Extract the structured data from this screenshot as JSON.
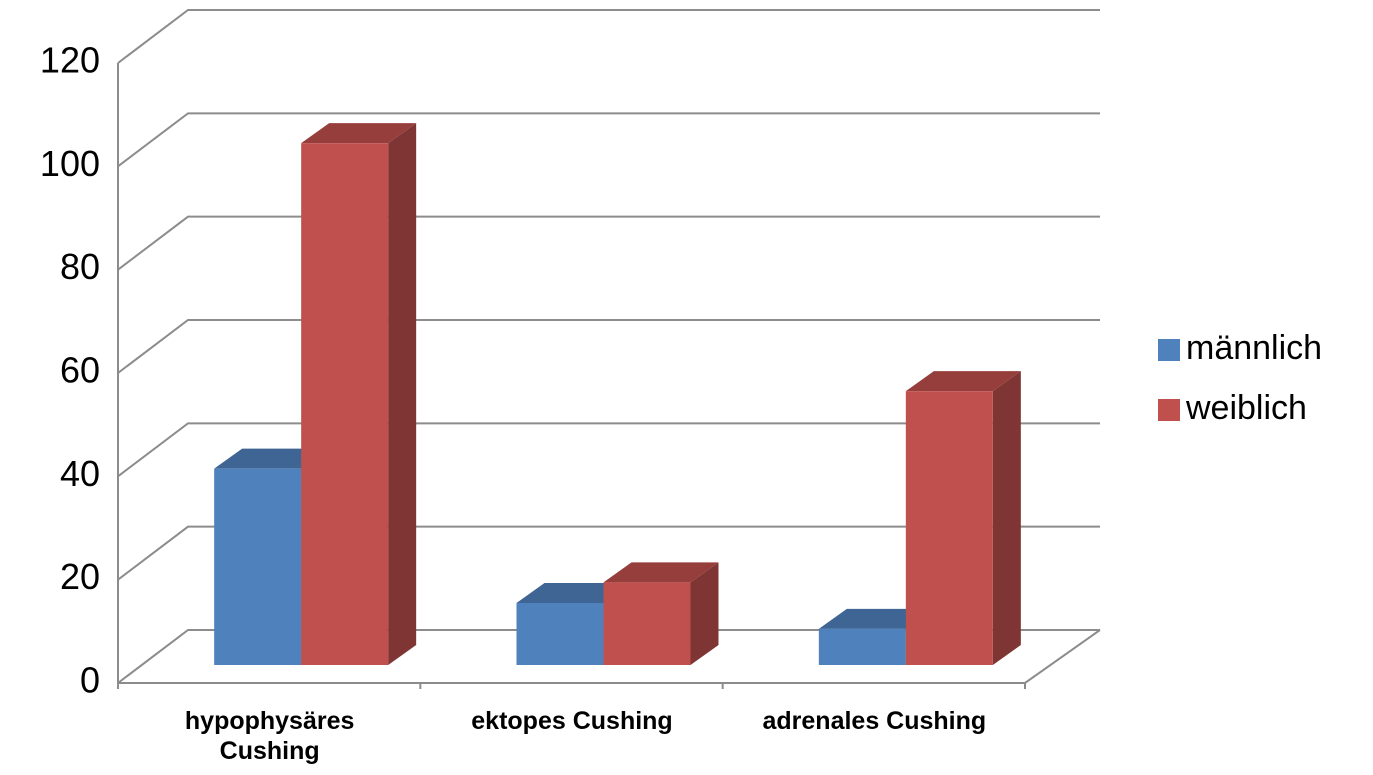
{
  "chart_data": {
    "type": "bar3d",
    "categories": [
      "hypophysäres Cushing",
      "ektopes Cushing",
      "adrenales Cushing"
    ],
    "series": [
      {
        "name": "männlich",
        "color": "#4f81bd",
        "values": [
          38,
          12,
          7
        ]
      },
      {
        "name": "weiblich",
        "color": "#c0504d",
        "values": [
          101,
          16,
          53
        ]
      }
    ],
    "ylim": [
      0,
      120
    ],
    "yticks": [
      0,
      20,
      40,
      60,
      80,
      100,
      120
    ],
    "grid": true,
    "legend": "right"
  }
}
